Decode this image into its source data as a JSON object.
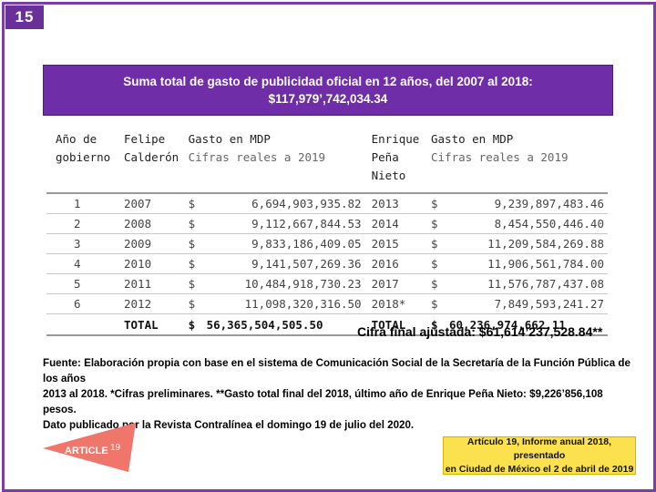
{
  "slide_number": "15",
  "header": {
    "line1": "Suma total de gasto de publicidad oficial en 12 años, del 2007 al 2018:",
    "line2": "$117,979’,742,034.34"
  },
  "table": {
    "headers": {
      "anio": [
        "Año de",
        "gobierno"
      ],
      "calderon": [
        "Felipe",
        "Calderón"
      ],
      "gasto1": [
        "Gasto en MDP",
        "Cifras reales a 2019"
      ],
      "pena": [
        "Enrique",
        "Peña Nieto"
      ],
      "gasto2": [
        "Gasto en MDP",
        "Cifras reales a 2019"
      ]
    },
    "currency": "$",
    "rows": [
      {
        "n": "1",
        "y1": "2007",
        "g1": "6,694,903,935.82",
        "y2": "2013",
        "g2": "9,239,897,483.46"
      },
      {
        "n": "2",
        "y1": "2008",
        "g1": "9,112,667,844.53",
        "y2": "2014",
        "g2": "8,454,550,446.40"
      },
      {
        "n": "3",
        "y1": "2009",
        "g1": "9,833,186,409.05",
        "y2": "2015",
        "g2": "11,209,584,269.88"
      },
      {
        "n": "4",
        "y1": "2010",
        "g1": "9,141,507,269.36",
        "y2": "2016",
        "g2": "11,906,561,784.00"
      },
      {
        "n": "5",
        "y1": "2011",
        "g1": "10,484,918,730.23",
        "y2": "2017",
        "g2": "11,576,787,437.08"
      },
      {
        "n": "6",
        "y1": "2012",
        "g1": "11,098,320,316.50",
        "y2": "2018*",
        "g2": "7,849,593,241.27"
      }
    ],
    "total": {
      "label1": "TOTAL",
      "value1": "56,365,504,505.50",
      "label2": "TOTAL",
      "value2": "60,236,974,662.11"
    }
  },
  "cifra_final": "Cifra final ajustada: $61,614’237,528.84**",
  "source": {
    "line1": "Fuente: Elaboración propia con base en el sistema de Comunicación Social de la Secretaría de la Función Pública de los años",
    "line2": "2013 al 2018. *Cifras preliminares. **Gasto total final del 2018, último año de Enrique Peña Nieto: $9,226’856,108 pesos.",
    "line3": "Dato publicado por la Revista Contralínea el domingo 19 de julio del 2020."
  },
  "logo": {
    "text": "ARTICLE",
    "number": "19",
    "color": "#f0756a"
  },
  "callout": {
    "line1": "Artículo 19, Informe anual 2018, presentado",
    "line2": "en Ciudad de México el 2 de abril de 2019"
  },
  "colors": {
    "accent": "#6f2da8",
    "frame": "#7a3fa2",
    "callout_bg": "#fbe14d"
  }
}
